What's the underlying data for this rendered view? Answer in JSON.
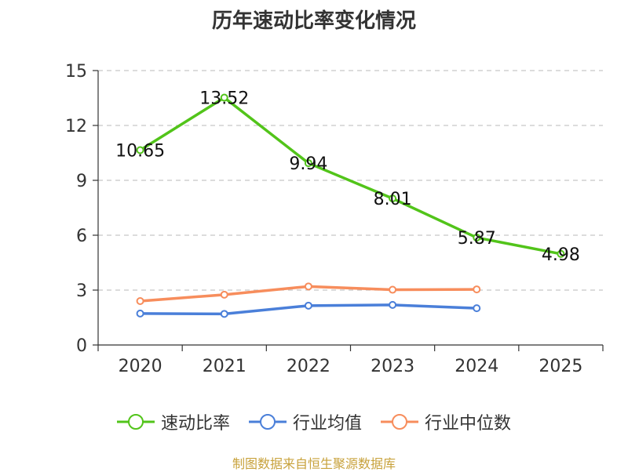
{
  "chart_data": {
    "type": "line",
    "title": "历年速动比率变化情况",
    "categories": [
      "2020",
      "2021",
      "2022",
      "2023",
      "2024",
      "2025"
    ],
    "y_ticks": [
      "0",
      "3",
      "6",
      "9",
      "12",
      "15"
    ],
    "ylim": [
      0,
      15
    ],
    "grid": true,
    "legend_position": "bottom",
    "series": [
      {
        "name": "速动比率",
        "color": "#52c41a",
        "values": [
          10.65,
          13.52,
          9.94,
          8.01,
          5.87,
          4.98
        ],
        "labels": [
          "10.65",
          "13.52",
          "9.94",
          "8.01",
          "5.87",
          "4.98"
        ]
      },
      {
        "name": "行业均值",
        "color": "#4a7fd9",
        "values": [
          1.72,
          1.7,
          2.15,
          2.19,
          2.01,
          null
        ]
      },
      {
        "name": "行业中位数",
        "color": "#f78d5c",
        "values": [
          2.4,
          2.75,
          3.2,
          3.02,
          3.04,
          null
        ]
      }
    ],
    "source": "制图数据来自恒生聚源数据库"
  }
}
